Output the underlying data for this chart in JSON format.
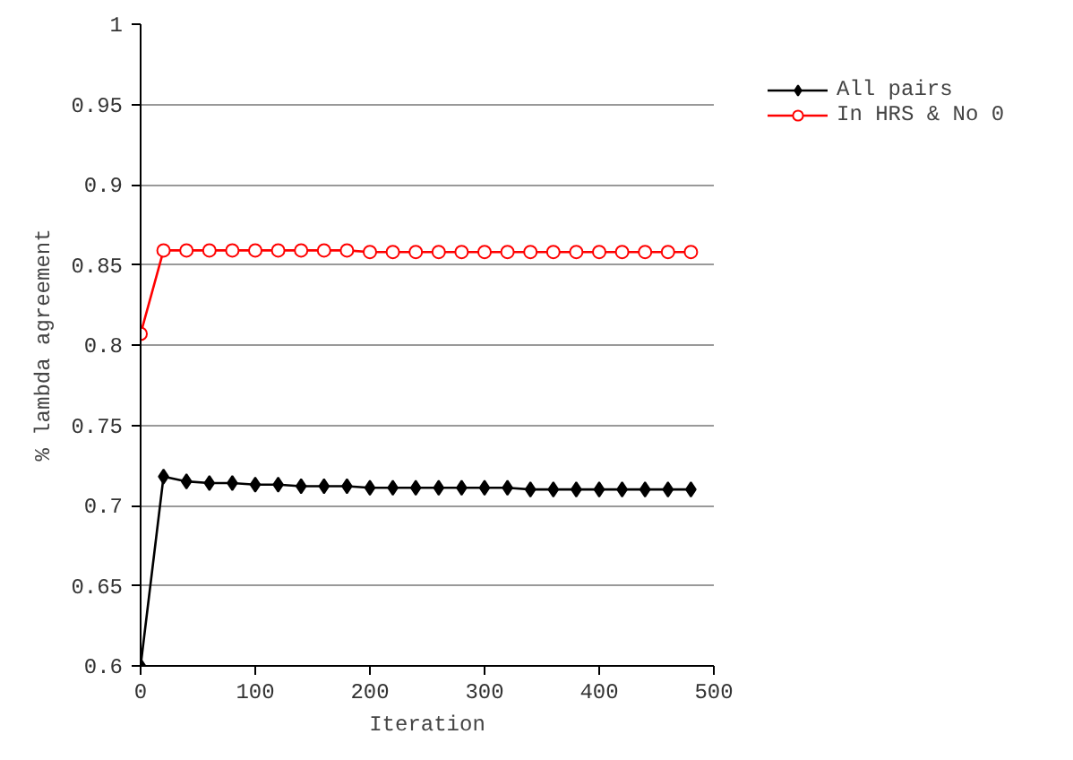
{
  "chart_data": {
    "type": "line",
    "xlabel": "Iteration",
    "ylabel": "% lambda agreement",
    "x": [
      0,
      20,
      40,
      60,
      80,
      100,
      120,
      140,
      160,
      180,
      200,
      220,
      240,
      260,
      280,
      300,
      320,
      340,
      360,
      380,
      400,
      420,
      440,
      460,
      480
    ],
    "series": [
      {
        "name": "All pairs",
        "color": "#000000",
        "marker": "diamond",
        "values": [
          0.6,
          0.718,
          0.715,
          0.714,
          0.714,
          0.713,
          0.713,
          0.712,
          0.712,
          0.712,
          0.711,
          0.711,
          0.711,
          0.711,
          0.711,
          0.711,
          0.711,
          0.71,
          0.71,
          0.71,
          0.71,
          0.71,
          0.71,
          0.71,
          0.71
        ]
      },
      {
        "name": "In HRS & No 0",
        "color": "#ff0000",
        "marker": "circle",
        "values": [
          0.807,
          0.859,
          0.859,
          0.859,
          0.859,
          0.859,
          0.859,
          0.859,
          0.859,
          0.859,
          0.858,
          0.858,
          0.858,
          0.858,
          0.858,
          0.858,
          0.858,
          0.858,
          0.858,
          0.858,
          0.858,
          0.858,
          0.858,
          0.858,
          0.858
        ]
      }
    ],
    "xlim": [
      0,
      500
    ],
    "xticks": [
      0,
      100,
      200,
      300,
      400,
      500
    ],
    "ylim": [
      0.6,
      1
    ],
    "yticks": [
      0.6,
      0.65,
      0.7,
      0.75,
      0.8,
      0.85,
      0.9,
      0.95,
      1
    ],
    "grid": "y",
    "legend": "top right",
    "line_style": "solid"
  }
}
